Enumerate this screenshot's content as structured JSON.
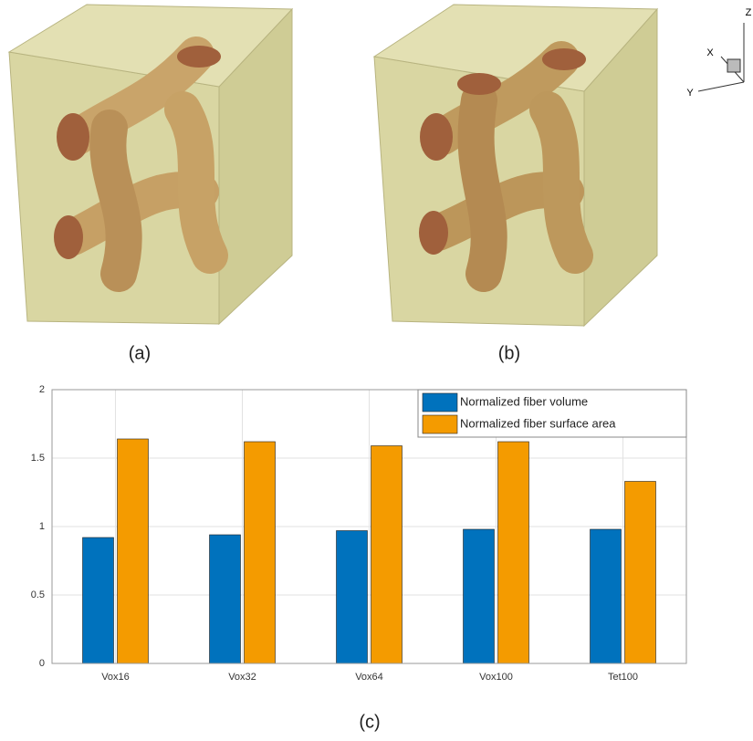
{
  "chart_data": {
    "type": "bar",
    "categories": [
      "Vox16",
      "Vox32",
      "Vox64",
      "Vox100",
      "Tet100"
    ],
    "series": [
      {
        "name": "Normalized fiber volume",
        "color": "#0072bd",
        "values": [
          0.92,
          0.94,
          0.97,
          0.98,
          0.98
        ]
      },
      {
        "name": "Normalized fiber surface area",
        "color": "#f49b00",
        "values": [
          1.64,
          1.62,
          1.59,
          1.62,
          1.33
        ]
      }
    ],
    "ylim": [
      0,
      2
    ],
    "yticks": [
      0,
      0.5,
      1,
      1.5,
      2
    ],
    "grid": true,
    "legend": "upper right"
  },
  "panel_labels": [
    "(a)",
    "(b)",
    "(c)"
  ],
  "triad": {
    "z": "Z",
    "x": "X",
    "y": "Y"
  }
}
